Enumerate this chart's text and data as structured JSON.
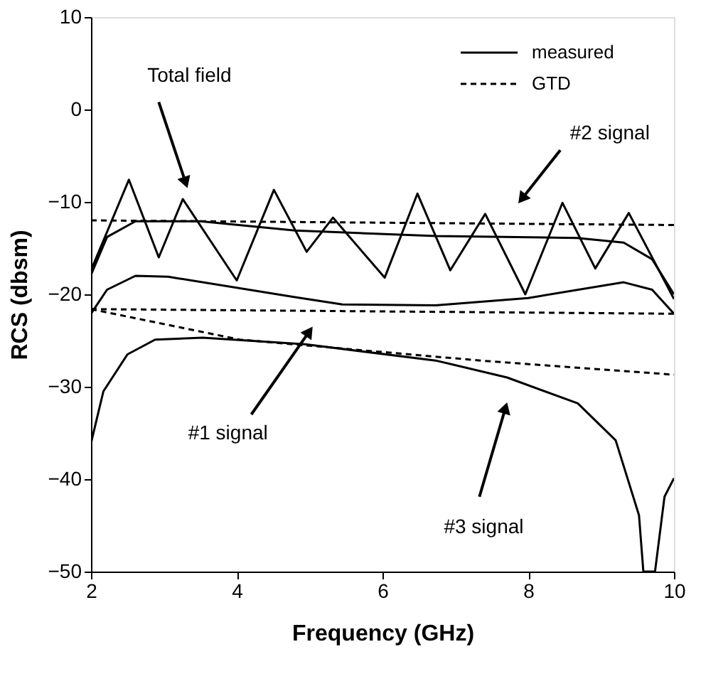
{
  "chart_data": {
    "type": "line",
    "xlabel": "Frequency  (GHz)",
    "ylabel": "RCS  (dbsm)",
    "xlim": [
      2,
      10
    ],
    "ylim": [
      -50,
      10
    ],
    "xticks": [
      2,
      4,
      6,
      8,
      10
    ],
    "yticks": [
      -50,
      -40,
      -30,
      -20,
      -10,
      0,
      10
    ],
    "grid": false,
    "legend": "top right",
    "marker": "none",
    "series": [
      {
        "name": "measured",
        "color": "#000000",
        "line_style": "solid",
        "x": [
          2.0,
          2.52,
          2.93,
          3.26,
          4.0,
          4.51,
          4.96,
          5.32,
          6.03,
          6.48,
          6.93,
          7.41,
          7.96,
          8.47,
          8.92,
          9.38,
          10.0
        ],
        "values": [
          -17.4,
          -7.6,
          -16.0,
          -9.7,
          -18.5,
          -8.7,
          -15.4,
          -11.7,
          -18.2,
          -9.1,
          -17.4,
          -11.3,
          -20.0,
          -10.1,
          -17.2,
          -11.2,
          -20.5
        ]
      },
      {
        "name": "GTD",
        "color": "#000000",
        "line_style": "dashed",
        "x": [
          2,
          10
        ],
        "values": [
          -12.0,
          -12.5
        ]
      },
      {
        "color": "#000000",
        "line_style": "solid",
        "x": [
          2.0,
          2.22,
          2.61,
          3.5,
          4.8,
          6.73,
          8.67,
          9.31,
          9.7,
          10.0
        ],
        "values": [
          -17.9,
          -13.8,
          -12.1,
          -12.1,
          -13.1,
          -13.7,
          -13.9,
          -14.4,
          -16.2,
          -20.0
        ]
      },
      {
        "color": "#000000",
        "line_style": "solid",
        "x": [
          2.0,
          2.22,
          2.61,
          3.06,
          4.8,
          5.45,
          6.73,
          8.0,
          9.31,
          9.7,
          10.0
        ],
        "values": [
          -22.1,
          -19.5,
          -18.0,
          -18.1,
          -20.3,
          -21.1,
          -21.2,
          -20.4,
          -18.7,
          -19.5,
          -22.1
        ]
      },
      {
        "color": "#000000",
        "line_style": "dashed",
        "x": [
          2,
          10
        ],
        "values": [
          -21.6,
          -22.1
        ]
      },
      {
        "color": "#000000",
        "line_style": "dashed",
        "x": [
          2.0,
          4.04,
          7.39,
          10.0
        ],
        "values": [
          -21.6,
          -24.9,
          -27.2,
          -28.7
        ]
      },
      {
        "color": "#000000",
        "line_style": "solid",
        "x": [
          2.0,
          2.17,
          2.5,
          2.88,
          3.53,
          4.94,
          6.75,
          7.71,
          8.68,
          9.2,
          9.52,
          9.58,
          9.74,
          9.87,
          10.0
        ],
        "values": [
          -36.1,
          -30.5,
          -26.5,
          -24.9,
          -24.7,
          -25.4,
          -27.2,
          -29.0,
          -31.8,
          -35.8,
          -43.9,
          -50.0,
          -50.0,
          -41.9,
          -39.9
        ]
      }
    ],
    "annotations": [
      {
        "text": "Total field",
        "x": 3.29,
        "y": -7.7
      },
      {
        "text": "#2 signal",
        "x": 7.93,
        "y": -9.5
      },
      {
        "text": "#1 signal",
        "x": 4.98,
        "y": -24.2
      },
      {
        "text": "#3 signal",
        "x": 7.68,
        "y": -32.5
      }
    ]
  }
}
